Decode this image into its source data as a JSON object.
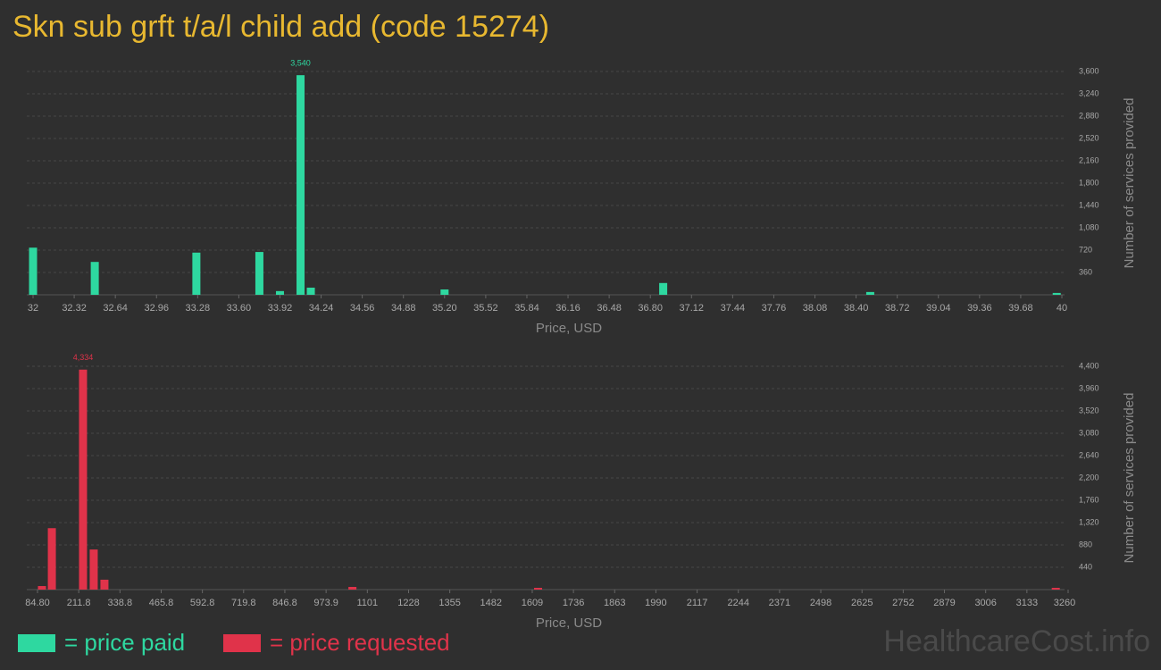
{
  "title": "Skn sub grft t/a/l child add (code 15274)",
  "watermark": "HealthcareCost.info",
  "chart_data": [
    {
      "type": "bar",
      "xlabel": "Price, USD",
      "ylabel": "Number of services provided",
      "xlim": [
        32,
        40
      ],
      "xticks": [
        32,
        32.32,
        32.64,
        32.96,
        33.28,
        {
          "value": 33.6,
          "label": "33.60"
        },
        33.92,
        34.24,
        34.56,
        34.88,
        {
          "value": 35.2,
          "label": "35.20"
        },
        35.52,
        35.84,
        36.16,
        36.48,
        {
          "value": 36.8,
          "label": "36.80"
        },
        37.12,
        37.44,
        37.76,
        38.08,
        {
          "value": 38.4,
          "label": "38.40"
        },
        38.72,
        39.04,
        39.36,
        39.68,
        40
      ],
      "ylim": [
        0,
        3600
      ],
      "yticks": [
        360,
        720,
        {
          "value": 1080,
          "label": "1,080"
        },
        {
          "value": 1440,
          "label": "1,440"
        },
        {
          "value": 1800,
          "label": "1,800"
        },
        {
          "value": 2160,
          "label": "2,160"
        },
        {
          "value": 2520,
          "label": "2,520"
        },
        {
          "value": 2880,
          "label": "2,880"
        },
        {
          "value": 3240,
          "label": "3,240"
        },
        {
          "value": 3600,
          "label": "3,600"
        }
      ],
      "grid": true,
      "series": [
        {
          "name": "= price paid",
          "color": "#2ed8a0",
          "x": [
            32.0,
            32.48,
            33.27,
            33.76,
            33.92,
            34.08,
            34.16,
            35.2,
            36.9,
            38.51,
            39.96
          ],
          "values": [
            760,
            530,
            680,
            690,
            60,
            3540,
            115,
            86,
            190,
            45,
            30
          ],
          "value_labels": [
            null,
            null,
            null,
            null,
            null,
            "3,540",
            null,
            null,
            null,
            null,
            null
          ]
        }
      ]
    },
    {
      "type": "bar",
      "xlabel": "Price, USD",
      "ylabel": "Number of services provided",
      "xlim": [
        84.8,
        3260
      ],
      "xticks": [
        {
          "value": 84.8,
          "label": "84.80"
        },
        211.8,
        338.8,
        465.8,
        592.8,
        719.8,
        846.8,
        973.9,
        1101,
        1228,
        1355,
        1482,
        1609,
        1736,
        1863,
        1990,
        2117,
        2244,
        2371,
        2498,
        2625,
        2752,
        2879,
        3006,
        3133,
        3260
      ],
      "ylim": [
        0,
        4400
      ],
      "yticks": [
        440,
        880,
        {
          "value": 1320,
          "label": "1,320"
        },
        {
          "value": 1760,
          "label": "1,760"
        },
        {
          "value": 2200,
          "label": "2,200"
        },
        {
          "value": 2640,
          "label": "2,640"
        },
        {
          "value": 3080,
          "label": "3,080"
        },
        {
          "value": 3520,
          "label": "3,520"
        },
        {
          "value": 3960,
          "label": "3,960"
        },
        {
          "value": 4400,
          "label": "4,400"
        }
      ],
      "grid": true,
      "series": [
        {
          "name": "= price requested",
          "color": "#e0334a",
          "x": [
            98.5,
            129,
            225,
            258,
            291,
            1055,
            1627,
            3222
          ],
          "values": [
            70,
            1210,
            4334,
            790,
            195,
            53,
            35,
            35
          ],
          "value_labels": [
            null,
            null,
            "4,334",
            null,
            null,
            null,
            null,
            null
          ]
        }
      ]
    }
  ]
}
